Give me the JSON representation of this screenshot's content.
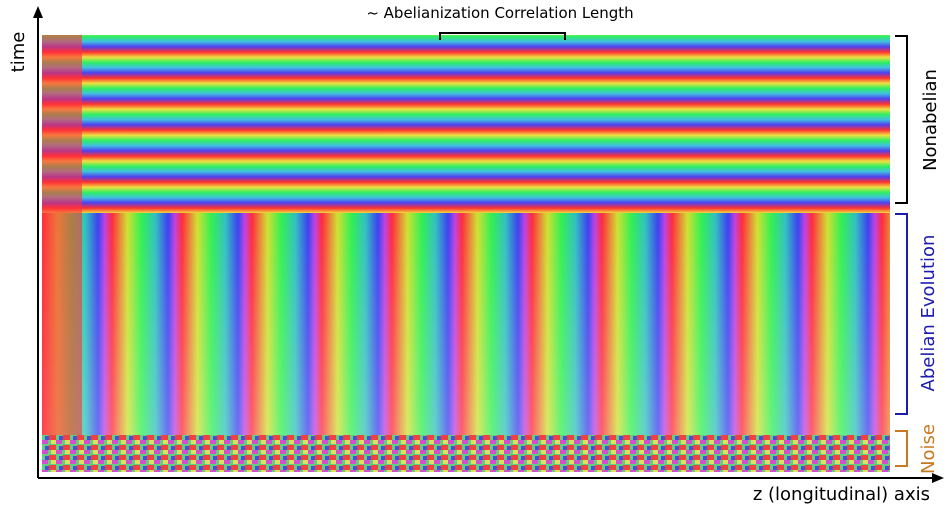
{
  "axes": {
    "y_label": "time",
    "x_label": "z (longitudinal) axis"
  },
  "annotations": {
    "top": "~ Abelianization Correlation Length",
    "regions": [
      "Nonabelian",
      "Abelian Evolution",
      "Noise"
    ]
  }
}
